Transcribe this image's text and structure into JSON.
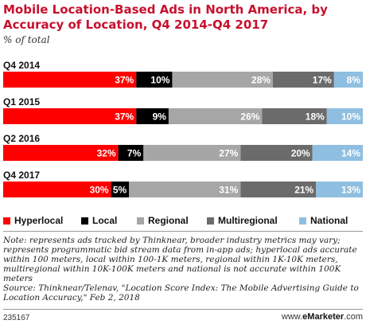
{
  "chart_data": {
    "type": "bar",
    "orientation": "horizontal",
    "stacked": true,
    "title": "Mobile Location-Based Ads in North America, by Accuracy of Location, Q4 2014-Q4 2017",
    "subtitle": "% of total",
    "categories": [
      "Q4 2014",
      "Q1 2015",
      "Q2 2016",
      "Q4 2017"
    ],
    "series": [
      {
        "name": "Hyperlocal",
        "color": "#ff0000",
        "label_color": "#ffffff",
        "values": [
          37,
          37,
          32,
          30
        ]
      },
      {
        "name": "Local",
        "color": "#000000",
        "label_color": "#ffffff",
        "values": [
          10,
          9,
          7,
          5
        ]
      },
      {
        "name": "Regional",
        "color": "#a6a6a6",
        "label_color": "#ffffff",
        "values": [
          28,
          26,
          27,
          31
        ]
      },
      {
        "name": "Multiregional",
        "color": "#6b6b6b",
        "label_color": "#ffffff",
        "values": [
          17,
          18,
          20,
          21
        ]
      },
      {
        "name": "National",
        "color": "#8fbfe0",
        "label_color": "#ffffff",
        "values": [
          8,
          10,
          14,
          13
        ]
      }
    ],
    "value_suffix": "%",
    "legend_position": "bottom",
    "grid": false
  },
  "footer": {
    "note": "Note: represents ads tracked by Thinknear, broader industry metrics may vary; represents programmatic bid stream data from in-app ads; hyperlocal ads accurate within 100 meters, local within 100-1K meters, regional within 1K-10K meters, multiregional within 10K-100K meters and national is not accurate within 100K meters",
    "source": "Source: Thinknear/Telenav, \"Location Score Index: The Mobile Advertising Guide to Location Accuracy,\" Feb 2, 2018",
    "chart_id": "235167",
    "brand_prefix": "www.",
    "brand_name": "eMarketer",
    "brand_suffix": ".com"
  }
}
